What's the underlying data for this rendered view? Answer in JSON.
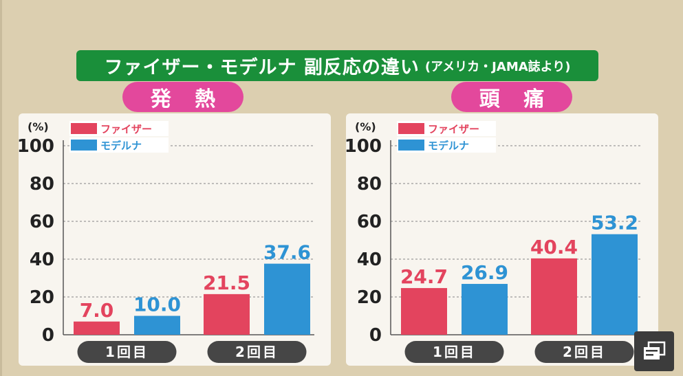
{
  "title": {
    "main": "ファイザー・モデルナ 副反応の違い",
    "source": "(アメリカ・JAMA誌より)"
  },
  "icons": {
    "corner": "captions-icon"
  },
  "colors": {
    "pfizer": "#e3445e",
    "moderna": "#2e93d4",
    "title_bg": "#1a8f3a",
    "pill_bg": "#e3489c",
    "category_bg": "#464646"
  },
  "chart_data": [
    {
      "type": "bar",
      "title": "発 熱",
      "unit": "(%)",
      "categories": [
        "1回目",
        "2回目"
      ],
      "series": [
        {
          "name": "ファイザー",
          "values": [
            7.0,
            21.5
          ],
          "labels": [
            "7.0",
            "21.5"
          ]
        },
        {
          "name": "モデルナ",
          "values": [
            10.0,
            37.6
          ],
          "labels": [
            "10.0",
            "37.6"
          ]
        }
      ],
      "yticks": [
        "0",
        "20",
        "40",
        "60",
        "80",
        "100"
      ],
      "ylim": [
        0,
        100
      ],
      "grid": true,
      "legend": "top-left"
    },
    {
      "type": "bar",
      "title": "頭 痛",
      "unit": "(%)",
      "categories": [
        "1回目",
        "2回目"
      ],
      "series": [
        {
          "name": "ファイザー",
          "values": [
            24.7,
            40.4
          ],
          "labels": [
            "24.7",
            "40.4"
          ]
        },
        {
          "name": "モデルナ",
          "values": [
            26.9,
            53.2
          ],
          "labels": [
            "26.9",
            "53.2"
          ]
        }
      ],
      "yticks": [
        "0",
        "20",
        "40",
        "60",
        "80",
        "100"
      ],
      "ylim": [
        0,
        100
      ],
      "grid": true,
      "legend": "top-left"
    }
  ]
}
